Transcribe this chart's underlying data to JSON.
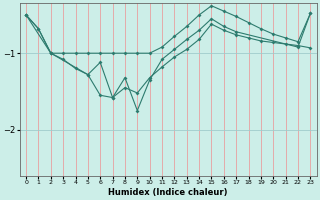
{
  "title": "",
  "xlabel": "Humidex (Indice chaleur)",
  "bg_color": "#cceee8",
  "line_color": "#2d7b6e",
  "grid_color_v": "#e8a0a0",
  "grid_color_h": "#a0cccc",
  "x_ticks": [
    0,
    1,
    2,
    3,
    4,
    5,
    6,
    7,
    8,
    9,
    10,
    11,
    12,
    13,
    14,
    15,
    16,
    17,
    18,
    19,
    20,
    21,
    22,
    23
  ],
  "ylim": [
    -2.6,
    -0.35
  ],
  "yticks": [
    -2,
    -1
  ],
  "line1_x": [
    0,
    1,
    2,
    3,
    4,
    5,
    6,
    7,
    8,
    9,
    10,
    11,
    12,
    13,
    14,
    15,
    16,
    17,
    18,
    19,
    20,
    21,
    22,
    23
  ],
  "line1_y": [
    -0.5,
    -0.68,
    -1.0,
    -1.08,
    -1.2,
    -1.28,
    -1.55,
    -1.58,
    -1.45,
    -1.52,
    -1.32,
    -1.18,
    -1.05,
    -0.95,
    -0.82,
    -0.62,
    -0.7,
    -0.76,
    -0.8,
    -0.84,
    -0.86,
    -0.88,
    -0.9,
    -0.93
  ],
  "line2_x": [
    0,
    2,
    3,
    4,
    5,
    6,
    7,
    8,
    9,
    10,
    11,
    12,
    13,
    14,
    15,
    16,
    17,
    18,
    19,
    20,
    21,
    22,
    23
  ],
  "line2_y": [
    -0.5,
    -1.0,
    -1.0,
    -1.0,
    -1.0,
    -1.0,
    -1.0,
    -1.0,
    -1.0,
    -1.0,
    -0.92,
    -0.78,
    -0.65,
    -0.5,
    -0.38,
    -0.45,
    -0.52,
    -0.6,
    -0.68,
    -0.75,
    -0.8,
    -0.85,
    -0.48
  ],
  "line3_x": [
    0,
    1,
    2,
    5,
    6,
    7,
    8,
    9,
    10,
    11,
    12,
    13,
    14,
    15,
    16,
    17,
    22,
    23
  ],
  "line3_y": [
    -0.5,
    -0.68,
    -1.0,
    -1.28,
    -1.12,
    -1.58,
    -1.32,
    -1.75,
    -1.35,
    -1.08,
    -0.95,
    -0.82,
    -0.7,
    -0.55,
    -0.65,
    -0.72,
    -0.92,
    -0.48
  ]
}
